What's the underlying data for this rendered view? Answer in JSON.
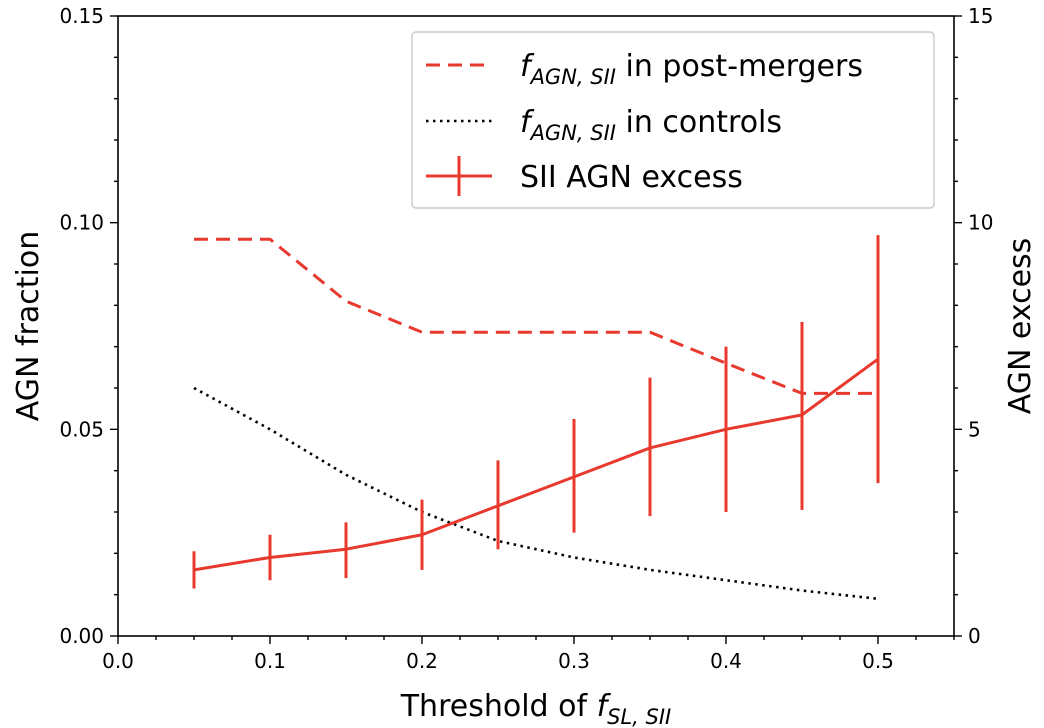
{
  "chart_data": {
    "type": "line",
    "title": "",
    "xlabel": "Threshold of f_{SL, SII}",
    "xlabel_parts": {
      "prefix": "Threshold of ",
      "var": "f",
      "sub": "SL, SII"
    },
    "ylabel_left": "AGN fraction",
    "ylabel_right": "AGN excess",
    "xlim": [
      0.0,
      0.55
    ],
    "ylim_left": [
      0.0,
      0.15
    ],
    "ylim_right": [
      0,
      15
    ],
    "x_ticks": [
      "0.0",
      "0.1",
      "0.2",
      "0.3",
      "0.4",
      "0.5"
    ],
    "y_ticks_left": [
      "0.00",
      "0.05",
      "0.10",
      "0.15"
    ],
    "y_ticks_right": [
      "0",
      "5",
      "10",
      "15"
    ],
    "x": [
      0.05,
      0.1,
      0.15,
      0.2,
      0.25,
      0.3,
      0.35,
      0.4,
      0.45,
      0.5
    ],
    "series": [
      {
        "name": "f_AGN,SII in post-mergers",
        "axis": "left",
        "style": "dashed",
        "color": "#e8392e",
        "values": [
          0.096,
          0.096,
          0.081,
          0.0735,
          0.0735,
          0.0735,
          0.0735,
          0.066,
          0.0587,
          0.0587
        ]
      },
      {
        "name": "f_AGN,SII in controls",
        "axis": "left",
        "style": "dotted",
        "color": "#000000",
        "values": [
          0.06,
          0.05,
          0.039,
          0.03,
          0.023,
          0.019,
          0.016,
          0.0135,
          0.011,
          0.009
        ]
      },
      {
        "name": "SII AGN excess",
        "axis": "right",
        "style": "solid",
        "color": "#e8392e",
        "values": [
          1.6,
          1.9,
          2.1,
          2.45,
          3.15,
          3.85,
          4.55,
          5.0,
          5.35,
          6.7
        ],
        "err_low": [
          1.15,
          1.35,
          1.4,
          1.6,
          2.1,
          2.5,
          2.9,
          3.0,
          3.05,
          3.7
        ],
        "err_high": [
          2.05,
          2.45,
          2.75,
          3.3,
          4.25,
          5.25,
          6.25,
          7.0,
          7.6,
          9.7
        ]
      }
    ],
    "legend": {
      "position": "top-right",
      "entries": [
        {
          "var": "f",
          "sub": "AGN, SII",
          "text": " in post-mergers"
        },
        {
          "var": "f",
          "sub": "AGN, SII",
          "text": " in controls"
        },
        {
          "var": "",
          "sub": "",
          "text": "SII AGN excess"
        }
      ]
    }
  }
}
